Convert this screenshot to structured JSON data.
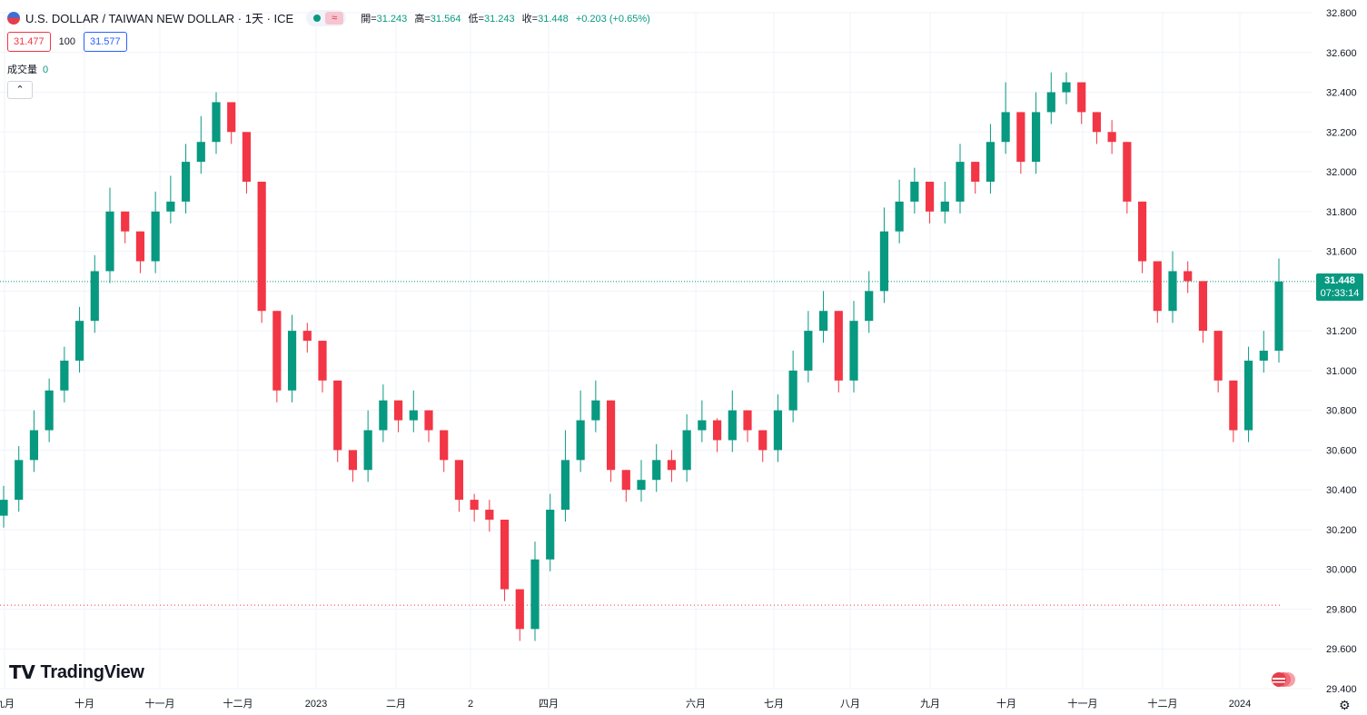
{
  "header": {
    "title": "U.S. DOLLAR / TAIWAN NEW DOLLAR · 1天 · ICE",
    "ohlc": [
      {
        "label": "開=",
        "value": "31.243"
      },
      {
        "label": "高=",
        "value": "31.564"
      },
      {
        "label": "低=",
        "value": "31.243"
      },
      {
        "label": "收=",
        "value": "31.448"
      },
      {
        "label": "",
        "value": "+0.203 (+0.65%)"
      }
    ],
    "sell_price": "31.477",
    "quantity": "100",
    "buy_price": "31.577",
    "volume_label": "成交量",
    "volume_value": "0",
    "collapse_icon": "chevron-up-icon"
  },
  "last_price": {
    "price": "31.448",
    "countdown": "07:33:14"
  },
  "logo_text": "TradingView",
  "colors": {
    "up": "#089981",
    "down": "#f23645",
    "grid": "#f0f3fa"
  },
  "chart_data": {
    "type": "candlestick",
    "ylim": [
      29.4,
      32.8
    ],
    "yticks": [
      "32.800",
      "32.600",
      "32.400",
      "32.200",
      "32.000",
      "31.800",
      "31.600",
      "31.400",
      "31.200",
      "31.000",
      "30.800",
      "30.600",
      "30.400",
      "30.200",
      "30.000",
      "29.800",
      "29.600",
      "29.400"
    ],
    "xlabels": [
      "九月",
      "十月",
      "十一月",
      "十二月",
      "2023",
      "二月",
      "2",
      "四月",
      "六月",
      "七月",
      "八月",
      "九月",
      "十月",
      "十一月",
      "十二月",
      "2024"
    ],
    "current_price": 31.448,
    "reference_line": 29.82,
    "closes": [
      30.35,
      30.55,
      30.7,
      30.9,
      31.05,
      31.25,
      31.5,
      31.8,
      31.7,
      31.55,
      31.8,
      31.85,
      32.05,
      32.15,
      32.35,
      32.2,
      31.95,
      31.3,
      30.9,
      31.2,
      31.15,
      30.95,
      30.6,
      30.5,
      30.7,
      30.85,
      30.75,
      30.8,
      30.7,
      30.55,
      30.35,
      30.3,
      30.25,
      29.9,
      29.7,
      30.05,
      30.3,
      30.55,
      30.75,
      30.85,
      30.5,
      30.4,
      30.45,
      30.55,
      30.5,
      30.7,
      30.75,
      30.65,
      30.8,
      30.7,
      30.6,
      30.8,
      31.0,
      31.2,
      31.3,
      30.95,
      31.25,
      31.4,
      31.7,
      31.85,
      31.95,
      31.8,
      31.85,
      32.05,
      31.95,
      32.15,
      32.3,
      32.05,
      32.3,
      32.4,
      32.45,
      32.3,
      32.2,
      32.15,
      31.85,
      31.55,
      31.3,
      31.5,
      31.45,
      31.2,
      30.95,
      30.7,
      31.05,
      31.1,
      31.448
    ],
    "highs": [
      30.42,
      30.62,
      30.8,
      30.96,
      31.12,
      31.32,
      31.58,
      31.92,
      31.8,
      31.63,
      31.9,
      31.98,
      32.14,
      32.28,
      32.4,
      32.32,
      32.05,
      31.42,
      31.0,
      31.28,
      31.24,
      31.03,
      30.7,
      30.58,
      30.8,
      30.93,
      30.83,
      30.9,
      30.8,
      30.65,
      30.45,
      30.38,
      30.35,
      30.0,
      29.8,
      30.14,
      30.38,
      30.7,
      30.9,
      30.95,
      30.6,
      30.5,
      30.55,
      30.63,
      30.6,
      30.78,
      30.85,
      30.76,
      30.9,
      30.8,
      30.7,
      30.88,
      31.1,
      31.3,
      31.4,
      31.06,
      31.35,
      31.5,
      31.82,
      31.96,
      32.02,
      31.9,
      31.95,
      32.14,
      32.05,
      32.24,
      32.45,
      32.15,
      32.4,
      32.5,
      32.5,
      32.4,
      32.3,
      32.26,
      31.97,
      31.65,
      31.4,
      31.6,
      31.55,
      31.3,
      31.05,
      30.82,
      31.12,
      31.2,
      31.564
    ]
  }
}
